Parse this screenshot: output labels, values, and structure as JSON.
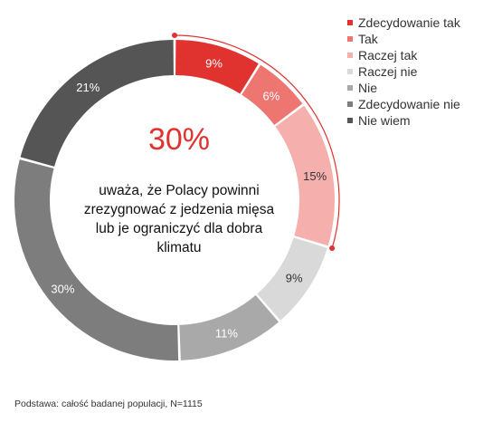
{
  "chart_data": {
    "type": "pie",
    "categories": [
      "Zdecydowanie tak",
      "Tak",
      "Raczej tak",
      "Raczej nie",
      "Nie",
      "Zdecydowanie nie",
      "Nie wiem"
    ],
    "values": [
      9,
      6,
      15,
      9,
      11,
      30,
      21
    ],
    "value_labels": [
      "9%",
      "6%",
      "15%",
      "9%",
      "11%",
      "30%",
      "21%"
    ],
    "colors": [
      "#e0322f",
      "#ee7670",
      "#f5afac",
      "#d9d9d9",
      "#a9a9a9",
      "#7d7d7d",
      "#555555"
    ],
    "label_colors": [
      "#ffffff",
      "#ffffff",
      "#333333",
      "#333333",
      "#ffffff",
      "#ffffff",
      "#ffffff"
    ],
    "legend_position": "top-right",
    "highlight_total": "30%",
    "highlight_text": "uważa, że Polacy powinni zrezygnować z jedzenia mięsa lub je ograniczyć dla dobra klimatu",
    "highlight_color": "#e0322f"
  },
  "footnote": "Podstawa: całość badanej populacji, N=1115"
}
